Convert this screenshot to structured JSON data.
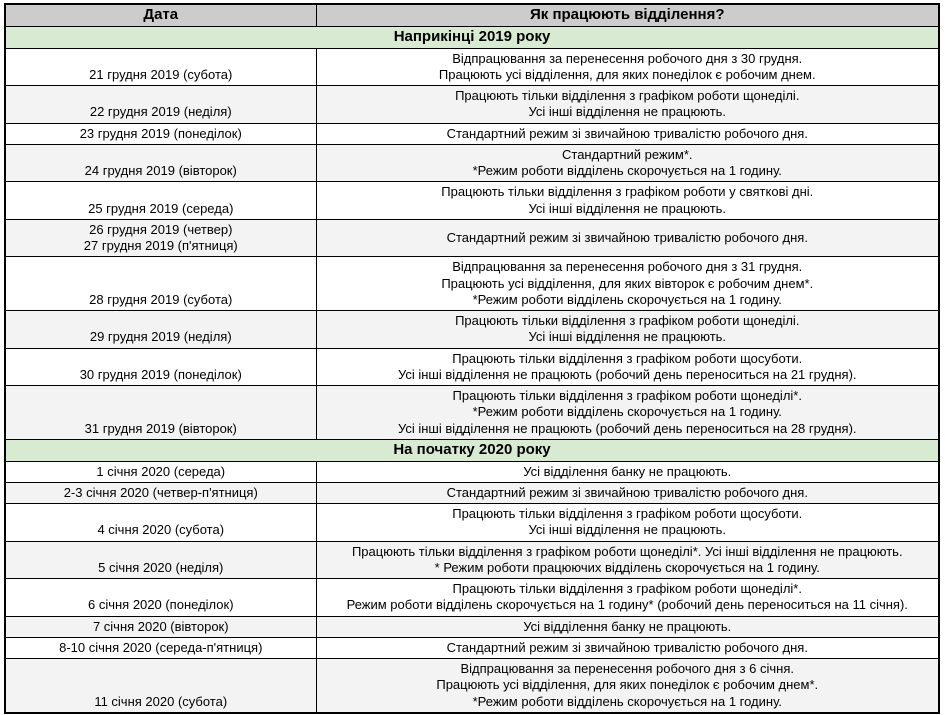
{
  "table": {
    "headers": {
      "date": "Дата",
      "work": "Як працюють відділення?"
    },
    "sections": [
      {
        "title": "Наприкінці 2019 року",
        "rows": [
          {
            "date": "21 грудня 2019 (субота)",
            "info": "Відпрацювання за перенесення робочого дня з 30 грудня.\nПрацюють усі відділення, для яких понеділок є робочим днем.",
            "shaded": false
          },
          {
            "date": "22 грудня 2019 (неділя)",
            "info": "Працюють тільки відділення з графіком роботи щонеділі.\nУсі інші відділення не працюють.",
            "shaded": true
          },
          {
            "date": "23 грудня 2019 (понеділок)",
            "info": "Стандартний режим зі звичайною тривалістю робочого дня.",
            "shaded": false
          },
          {
            "date": "24 грудня 2019 (вівторок)",
            "info": "Стандартний режим*.\n*Режим роботи відділень скорочується на 1 годину.",
            "shaded": true
          },
          {
            "date": "25 грудня 2019 (середа)",
            "info": "Працюють тільки відділення з графіком роботи у святкові дні.\nУсі інші відділення не працюють.",
            "shaded": false
          },
          {
            "date": "26 грудня 2019 (четвер)\n27 грудня 2019 (п'ятниця)",
            "info": "Стандартний режим зі звичайною тривалістю робочого дня.",
            "shaded": true
          },
          {
            "date": "28 грудня 2019 (субота)",
            "info": "Відпрацювання за перенесення робочого дня з 31 грудня.\nПрацюють усі відділення, для яких вівторок є робочим днем*.\n*Режим роботи відділень скорочується на 1 годину.",
            "shaded": false
          },
          {
            "date": "29 грудня 2019 (неділя)",
            "info": "Працюють тільки відділення з графіком роботи щонеділі.\nУсі інші відділення не працюють.",
            "shaded": true
          },
          {
            "date": "30 грудня 2019 (понеділок)",
            "info": "Працюють тільки відділення з графіком роботи щосуботи.\nУсі інші відділення не працюють (робочий день переноситься на 21 грудня).",
            "shaded": false
          },
          {
            "date": "31 грудня 2019 (вівторок)",
            "info": "Працюють тільки відділення з графіком роботи щонеділі*.\n*Режим роботи відділень скорочується на 1 годину.\nУсі інші відділення не працюють (робочий день переноситься на 28 грудня).",
            "shaded": true
          }
        ]
      },
      {
        "title": "На початку 2020 року",
        "rows": [
          {
            "date": "1 січня 2020 (середа)",
            "info": "Усі відділення банку не працюють.",
            "shaded": false
          },
          {
            "date": "2-3 січня 2020 (четвер-п'ятниця)",
            "info": "Стандартний режим зі звичайною тривалістю робочого дня.",
            "shaded": true
          },
          {
            "date": "4 січня 2020 (субота)",
            "info": "Працюють тільки відділення з графіком роботи щосуботи.\nУсі інші відділення не працюють.",
            "shaded": false
          },
          {
            "date": "5 січня 2020 (неділя)",
            "info": "Працюють тільки відділення з графіком роботи щонеділі*. Усі інші відділення не працюють.\n* Режим роботи працюючих відділень скорочується на 1 годину.",
            "shaded": true
          },
          {
            "date": "6 січня 2020 (понеділок)",
            "info": "Працюють тільки відділення з графіком роботи щонеділі*.\nРежим роботи відділень скорочується на 1 годину* (робочий день переноситься на 11 січня).",
            "shaded": false
          },
          {
            "date": "7 січня 2020 (вівторок)",
            "info": "Усі відділення банку не працюють.",
            "shaded": true
          },
          {
            "date": "8-10 січня 2020 (середа-п'ятниця)",
            "info": "Стандартний режим зі звичайною тривалістю робочого дня.",
            "shaded": false
          },
          {
            "date": "11 січня 2020 (субота)",
            "info": "Відпрацювання за перенесення робочого дня з 6 січня.\nПрацюють усі відділення, для яких понеділок є робочим днем*.\n*Режим роботи відділень скорочується на 1 годину.",
            "shaded": true
          }
        ]
      }
    ]
  },
  "colors": {
    "header_bg": "#cccccc",
    "section_bg": "#d9ead3",
    "shaded_row_bg": "#f3f3f3",
    "border": "#000000"
  }
}
